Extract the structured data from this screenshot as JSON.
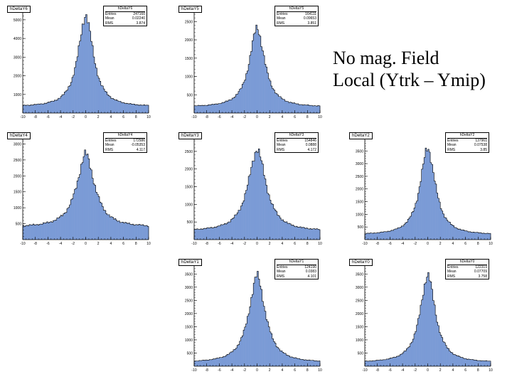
{
  "note": {
    "line1": "No mag. Field",
    "line2": "Local (Ytrk – Ymip)"
  },
  "colors": {
    "fill": "#7b9bd6",
    "outline": "#000000",
    "background": "#ffffff"
  },
  "chart_data": [
    {
      "type": "histogram",
      "title": "hDeltaY6",
      "stats_title": "hDeltaY6",
      "stats": {
        "entries": "247160",
        "mean": "0.02240",
        "rms": "3.874"
      },
      "xlim": [
        -10,
        10
      ],
      "ylim": [
        0,
        5300
      ],
      "xticks": [
        -10,
        -8,
        -6,
        -4,
        -2,
        0,
        2,
        4,
        6,
        8,
        10
      ],
      "yticks": [
        1000,
        2000,
        3000,
        4000,
        5000
      ],
      "peak": 5300,
      "base": 350,
      "tail_width": 2.0
    },
    {
      "type": "histogram",
      "title": "hDeltaY5",
      "stats_title": "hDeltaY5",
      "stats": {
        "entries": "164111",
        "mean": "0.09653",
        "rms": "3.851"
      },
      "xlim": [
        -10,
        10
      ],
      "ylim": [
        0,
        2700
      ],
      "xticks": [
        -10,
        -8,
        -6,
        -4,
        -2,
        0,
        2,
        4,
        6,
        8,
        10
      ],
      "yticks": [
        500,
        1000,
        1500,
        2000,
        2500
      ],
      "peak": 2350,
      "base": 170,
      "tail_width": 2.0
    },
    {
      "type": "histogram",
      "title": "hDeltaY4",
      "stats_title": "hDeltaY4",
      "stats": {
        "entries": "172586",
        "mean": "-0.05353",
        "rms": "4.117"
      },
      "xlim": [
        -10,
        10
      ],
      "ylim": [
        0,
        3100
      ],
      "xticks": [
        -10,
        -8,
        -6,
        -4,
        -2,
        0,
        2,
        4,
        6,
        8,
        10
      ],
      "yticks": [
        500,
        1000,
        1500,
        2000,
        2500,
        3000
      ],
      "peak": 2700,
      "base": 400,
      "tail_width": 2.4
    },
    {
      "type": "histogram",
      "title": "hDeltaY3",
      "stats_title": "hDeltaY3",
      "stats": {
        "entries": "154846",
        "mean": "0.0888",
        "rms": "4.172"
      },
      "xlim": [
        -10,
        10
      ],
      "ylim": [
        0,
        2800
      ],
      "xticks": [
        -10,
        -8,
        -6,
        -4,
        -2,
        0,
        2,
        4,
        6,
        8,
        10
      ],
      "yticks": [
        500,
        1000,
        1500,
        2000,
        2500
      ],
      "peak": 2580,
      "base": 250,
      "tail_width": 2.4
    },
    {
      "type": "histogram",
      "title": "hDeltaY2",
      "stats_title": "hDeltaY2",
      "stats": {
        "entries": "137961",
        "mean": "0.07538",
        "rms": "3.85"
      },
      "xlim": [
        -10,
        10
      ],
      "ylim": [
        0,
        3900
      ],
      "xticks": [
        -10,
        -8,
        -6,
        -4,
        -2,
        0,
        2,
        4,
        6,
        8,
        10
      ],
      "yticks": [
        500,
        1000,
        1500,
        2000,
        2500,
        3000,
        3500
      ],
      "peak": 3650,
      "base": 200,
      "tail_width": 2.0
    },
    {
      "type": "histogram",
      "title": "hDeltaY1",
      "stats_title": "hDeltaY1",
      "stats": {
        "entries": "124190",
        "mean": "0.0383",
        "rms": "4.101"
      },
      "xlim": [
        -10,
        10
      ],
      "ylim": [
        0,
        3750
      ],
      "xticks": [
        -10,
        -8,
        -6,
        -4,
        -2,
        0,
        2,
        4,
        6,
        8,
        10
      ],
      "yticks": [
        500,
        1000,
        1500,
        2000,
        2500,
        3000,
        3500
      ],
      "peak": 3450,
      "base": 150,
      "tail_width": 2.2
    },
    {
      "type": "histogram",
      "title": "hDeltaY0",
      "stats_title": "hDeltaY0",
      "stats": {
        "entries": "122319",
        "mean": "0.07709",
        "rms": "3.758"
      },
      "xlim": [
        -10,
        10
      ],
      "ylim": [
        0,
        3750
      ],
      "xticks": [
        -10,
        -8,
        -6,
        -4,
        -2,
        0,
        2,
        4,
        6,
        8,
        10
      ],
      "yticks": [
        500,
        1000,
        1500,
        2000,
        2500,
        3000,
        3500
      ],
      "peak": 3500,
      "base": 150,
      "tail_width": 2.0
    }
  ],
  "labels": {
    "entries": "Entries",
    "mean": "Mean",
    "rms": "RMS"
  }
}
